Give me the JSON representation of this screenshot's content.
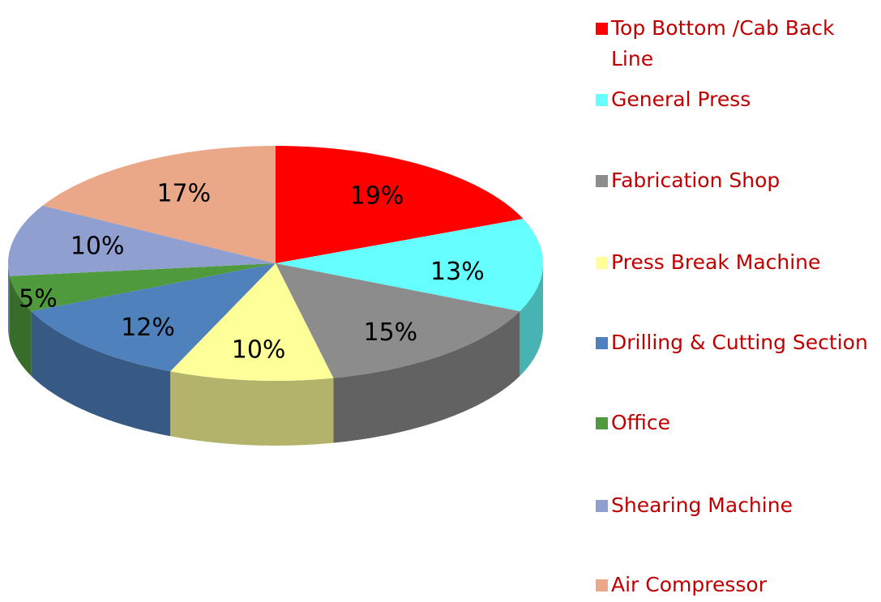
{
  "chart_data": {
    "type": "pie",
    "categories": [
      "Top Bottom /Cab Back Line",
      "General Press",
      "Fabrication Shop",
      "Press Break Machine",
      "Drilling & Cutting Section",
      "Office",
      "Shearing Machine",
      "Air Compressor"
    ],
    "values": [
      19,
      13,
      15,
      10,
      12,
      5,
      10,
      17
    ],
    "value_labels": [
      "19%",
      "13%",
      "15%",
      "10%",
      "12%",
      "5%",
      "10%",
      "17%"
    ],
    "colors": [
      "#ff0000",
      "#66ffff",
      "#8c8c8c",
      "#ffff99",
      "#4f81bd",
      "#4f9a3c",
      "#8fa0d0",
      "#eba888"
    ]
  }
}
